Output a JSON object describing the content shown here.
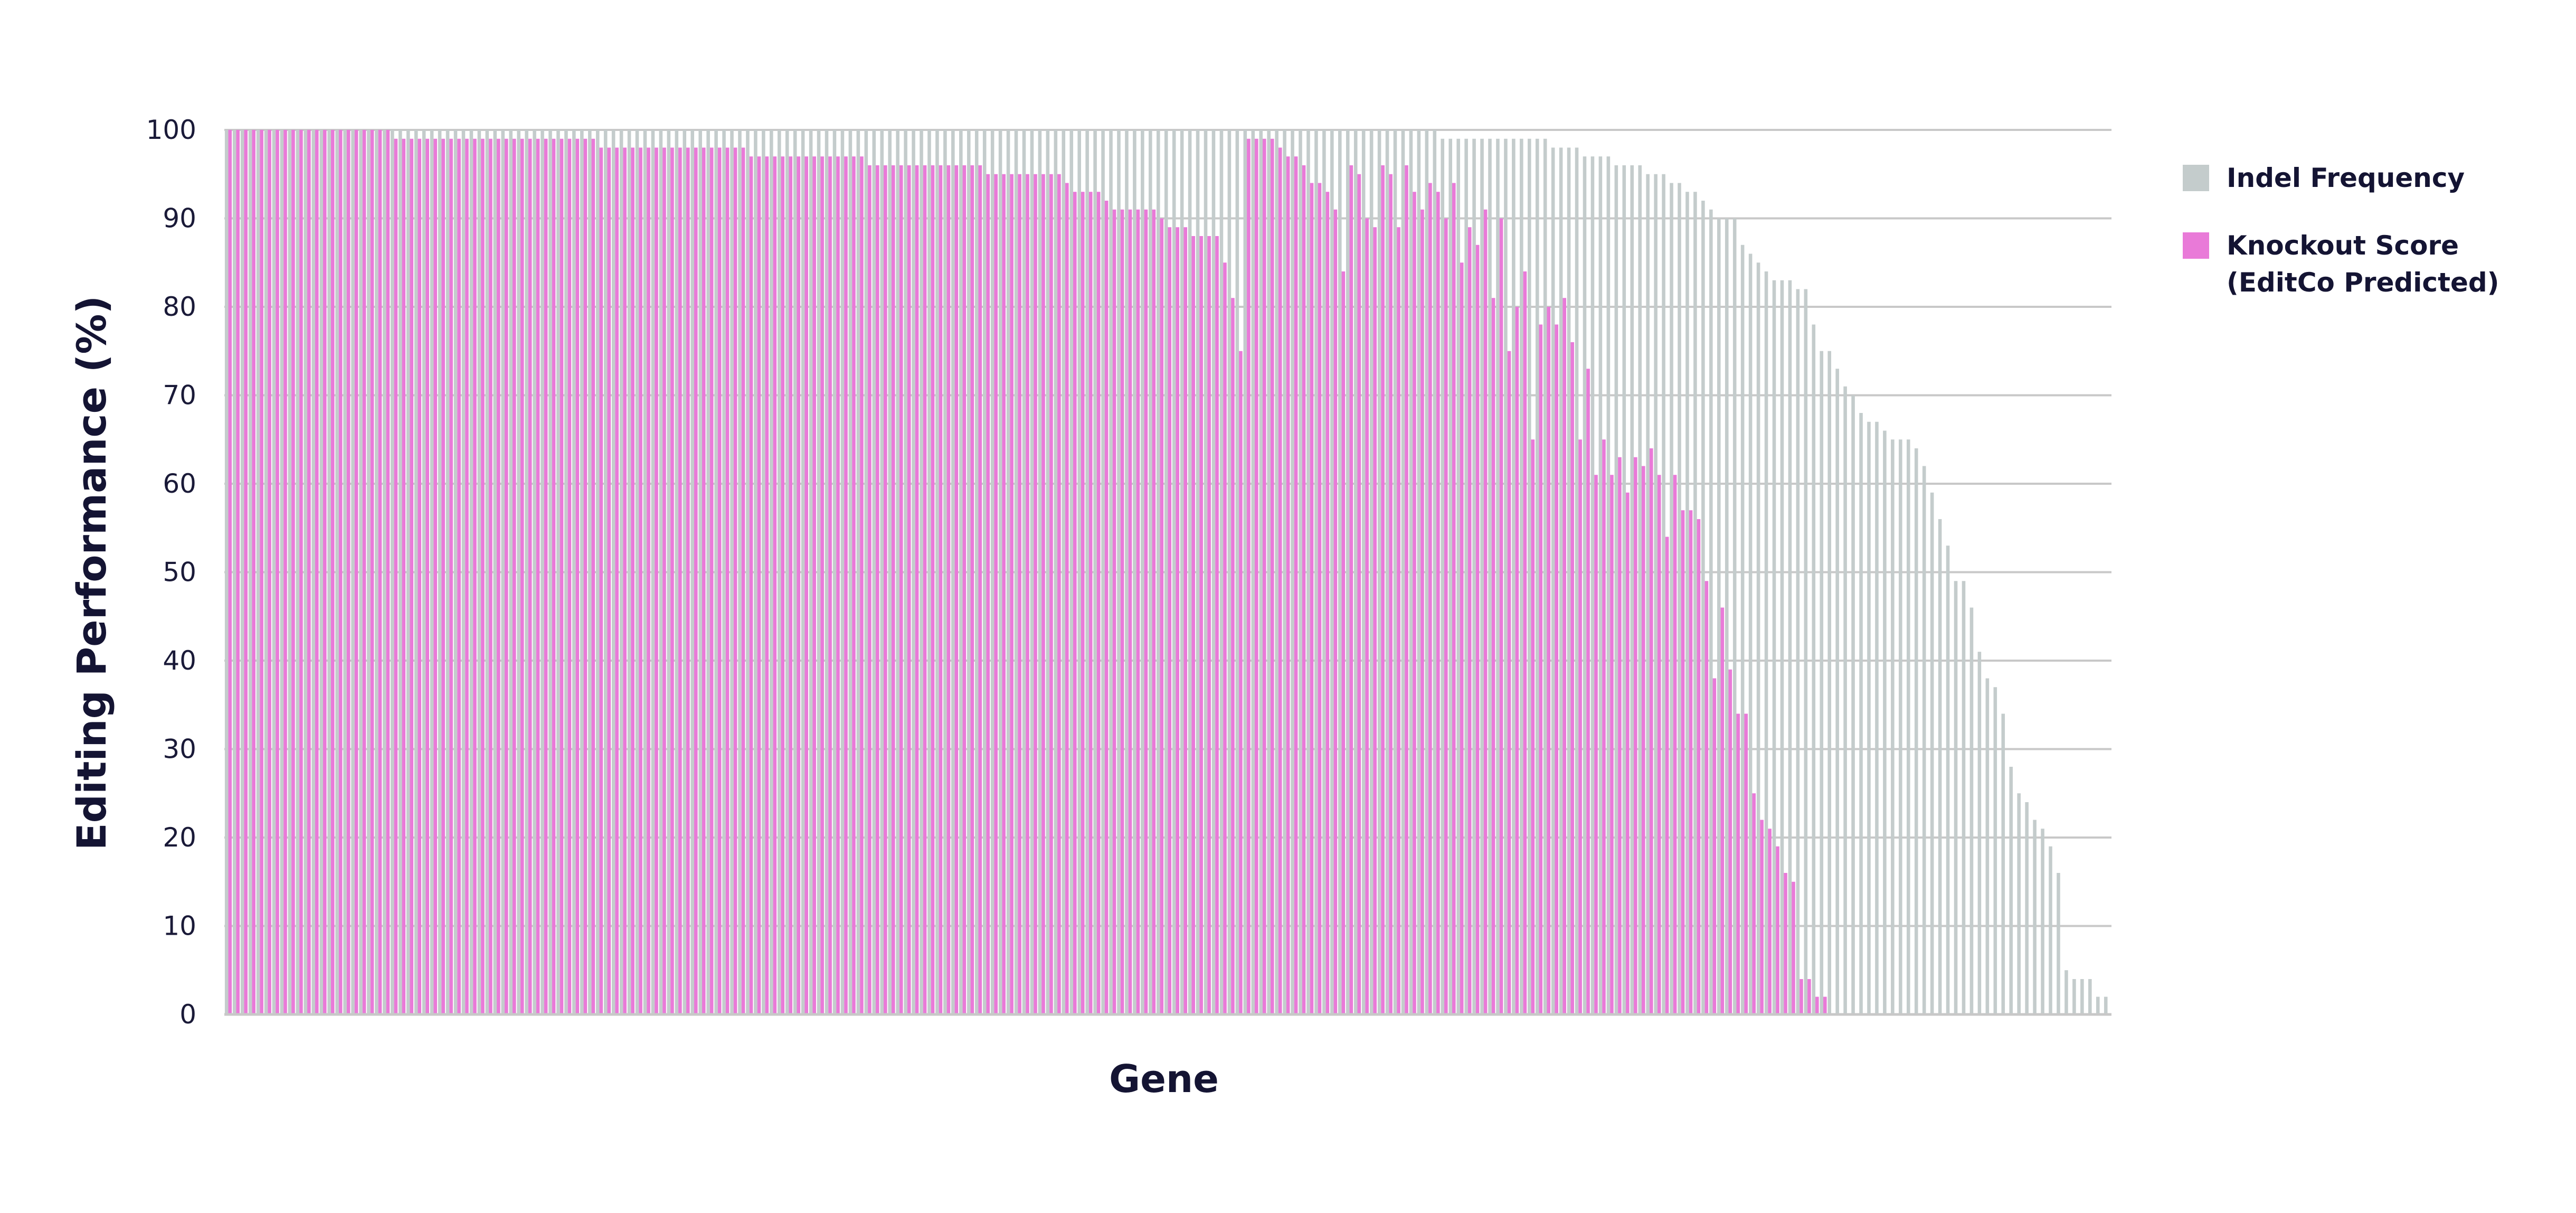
{
  "chart_data": {
    "type": "bar",
    "xlabel": "Gene",
    "ylabel": "Editing Performance (%)",
    "ylim": [
      0,
      100
    ],
    "yticks": [
      0,
      10,
      20,
      30,
      40,
      50,
      60,
      70,
      80,
      90,
      100
    ],
    "grid": true,
    "legend_position": "right",
    "legend": [
      {
        "label_lines": [
          "Indel Frequency"
        ],
        "color": "#c4cccc"
      },
      {
        "label_lines": [
          "Knockout Score",
          "(EditCo Predicted)"
        ],
        "color": "#e97ad8"
      }
    ],
    "series": [
      {
        "name": "Indel Frequency",
        "color": "#c4cccc",
        "values": [
          100,
          100,
          100,
          100,
          100,
          100,
          100,
          100,
          100,
          100,
          100,
          100,
          100,
          100,
          100,
          100,
          100,
          100,
          100,
          100,
          100,
          100,
          100,
          100,
          100,
          100,
          100,
          100,
          100,
          100,
          100,
          100,
          100,
          100,
          100,
          100,
          100,
          100,
          100,
          100,
          100,
          100,
          100,
          100,
          100,
          100,
          100,
          100,
          100,
          100,
          100,
          100,
          100,
          100,
          100,
          100,
          100,
          100,
          100,
          100,
          100,
          100,
          100,
          100,
          100,
          100,
          100,
          100,
          100,
          100,
          100,
          100,
          100,
          100,
          100,
          100,
          100,
          100,
          100,
          100,
          100,
          100,
          100,
          100,
          100,
          100,
          100,
          100,
          100,
          100,
          100,
          100,
          100,
          100,
          100,
          100,
          100,
          100,
          100,
          100,
          100,
          100,
          100,
          100,
          100,
          100,
          100,
          100,
          100,
          100,
          100,
          100,
          100,
          100,
          100,
          100,
          100,
          100,
          100,
          100,
          100,
          100,
          100,
          100,
          100,
          100,
          100,
          100,
          100,
          100,
          100,
          100,
          100,
          100,
          100,
          100,
          100,
          100,
          100,
          100,
          100,
          100,
          100,
          100,
          100,
          100,
          100,
          100,
          100,
          100,
          100,
          100,
          100,
          100,
          99,
          99,
          99,
          99,
          99,
          99,
          99,
          99,
          99,
          99,
          99,
          99,
          99,
          99,
          98,
          98,
          98,
          98,
          97,
          97,
          97,
          97,
          96,
          96,
          96,
          96,
          95,
          95,
          95,
          94,
          94,
          93,
          93,
          92,
          91,
          90,
          90,
          90,
          87,
          86,
          85,
          84,
          83,
          83,
          83,
          82,
          82,
          78,
          75,
          75,
          73,
          71,
          70,
          68,
          67,
          67,
          66,
          65,
          65,
          65,
          64,
          62,
          59,
          56,
          53,
          49,
          49,
          46,
          41,
          38,
          37,
          34,
          28,
          25,
          24,
          22,
          21,
          19,
          16,
          5,
          4,
          4,
          4,
          2,
          2
        ]
      },
      {
        "name": "Knockout Score (EditCo Predicted)",
        "color": "#e97ad8",
        "values": [
          100,
          100,
          100,
          100,
          100,
          100,
          100,
          100,
          100,
          100,
          100,
          100,
          100,
          100,
          100,
          100,
          100,
          100,
          100,
          100,
          100,
          99,
          99,
          99,
          99,
          99,
          99,
          99,
          99,
          99,
          99,
          99,
          99,
          99,
          99,
          99,
          99,
          99,
          99,
          99,
          99,
          99,
          99,
          99,
          99,
          99,
          99,
          98,
          98,
          98,
          98,
          98,
          98,
          98,
          98,
          98,
          98,
          98,
          98,
          98,
          98,
          98,
          98,
          98,
          98,
          98,
          97,
          97,
          97,
          97,
          97,
          97,
          97,
          97,
          97,
          97,
          97,
          97,
          97,
          97,
          97,
          96,
          96,
          96,
          96,
          96,
          96,
          96,
          96,
          96,
          96,
          96,
          96,
          96,
          96,
          96,
          95,
          95,
          95,
          95,
          95,
          95,
          95,
          95,
          95,
          95,
          94,
          93,
          93,
          93,
          93,
          92,
          91,
          91,
          91,
          91,
          91,
          91,
          90,
          89,
          89,
          89,
          88,
          88,
          88,
          88,
          85,
          81,
          75,
          99,
          99,
          99,
          99,
          98,
          97,
          97,
          96,
          94,
          94,
          93,
          91,
          84,
          96,
          95,
          90,
          89,
          96,
          95,
          89,
          96,
          93,
          91,
          94,
          93,
          90,
          94,
          85,
          89,
          87,
          91,
          81,
          90,
          75,
          80,
          84,
          65,
          78,
          80,
          78,
          81,
          76,
          65,
          73,
          61,
          65,
          61,
          63,
          59,
          63,
          62,
          64,
          61,
          54,
          61,
          57,
          57,
          56,
          49,
          38,
          46,
          39,
          34,
          34,
          25,
          22,
          21,
          19,
          16,
          15,
          4,
          4,
          2,
          2
        ]
      }
    ]
  }
}
